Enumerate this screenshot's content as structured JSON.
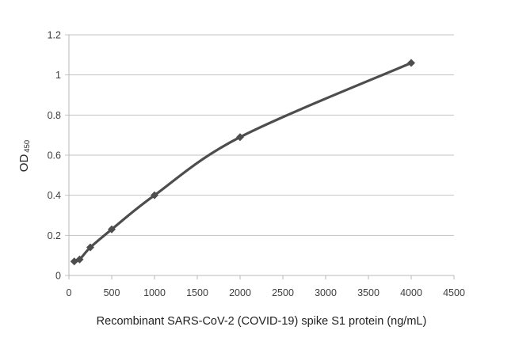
{
  "chart_data": {
    "type": "line",
    "title": "",
    "xlabel": "Recombinant SARS-CoV-2 (COVID-19) spike S1 protein (ng/mL)",
    "ylabel_main": "OD",
    "ylabel_sub": "450",
    "x": [
      62.5,
      125,
      250,
      500,
      1000,
      2000,
      4000
    ],
    "y": [
      0.07,
      0.08,
      0.14,
      0.23,
      0.4,
      0.69,
      1.06
    ],
    "xlim": [
      0,
      4500
    ],
    "ylim": [
      0,
      1.2
    ],
    "x_ticks": [
      0,
      500,
      1000,
      1500,
      2000,
      2500,
      3000,
      3500,
      4000,
      4500
    ],
    "x_tick_labels": [
      "0",
      "500",
      "1000",
      "1500",
      "2000",
      "2500",
      "3000",
      "3500",
      "4000",
      "4500"
    ],
    "y_ticks": [
      0,
      0.2,
      0.4,
      0.6,
      0.8,
      1,
      1.2
    ],
    "y_tick_labels": [
      "0",
      "0.2",
      "0.4",
      "0.6",
      "0.8",
      "1",
      "1.2"
    ],
    "grid": "horizontal",
    "legend": "none",
    "marker": "diamond",
    "smooth": true,
    "colors": {
      "line": "#4d4d4d",
      "marker": "#4d4d4d",
      "gridline": "#c3c3c3",
      "axis": "#b8b8b8",
      "tick_text": "#3d3d3d",
      "title_text": "#1f1f1f",
      "background": "#ffffff"
    }
  }
}
